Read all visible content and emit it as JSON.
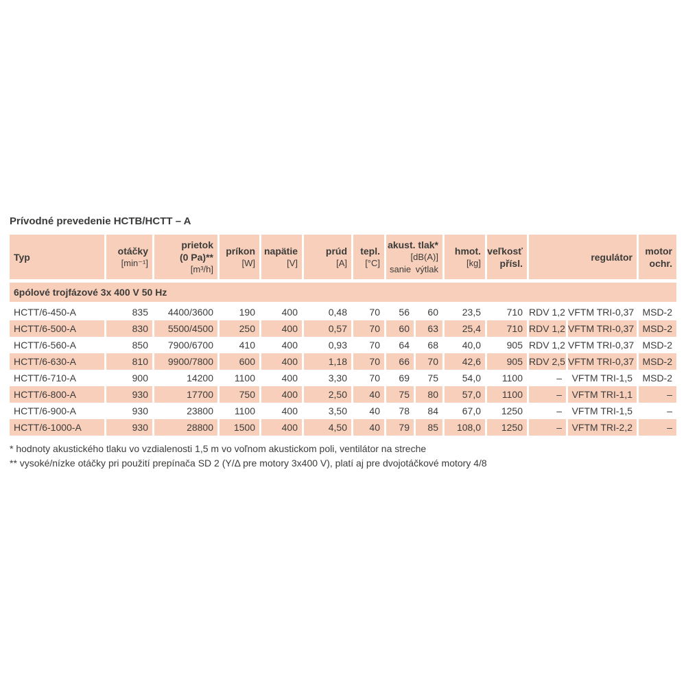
{
  "colors": {
    "cell_bg": "#f8cfba",
    "text": "#3b3b3a",
    "page_bg": "#ffffff"
  },
  "title": "Prívodné prevedenie HCTB/HCTT – A",
  "table": {
    "header": {
      "typ": "Typ",
      "otacky": {
        "label": "otáčky",
        "unit": "[min⁻¹]"
      },
      "prietok": {
        "label": "prietok",
        "unit": "(0 Pa)**",
        "unit2": "[m³/h]"
      },
      "prikon": {
        "label": "príkon",
        "unit": "[W]"
      },
      "napatie": {
        "label": "napätie",
        "unit": "[V]"
      },
      "prud": {
        "label": "prúd",
        "unit": "[A]"
      },
      "tepl": {
        "label": "tepl.",
        "unit": "[°C]"
      },
      "akust": {
        "label": "akust. tlak*",
        "unit": "[dB(A)]",
        "sub_left": "sanie",
        "sub_right": "výtlak"
      },
      "hmot": {
        "label": "hmot.",
        "unit": "[kg]"
      },
      "velkost": {
        "label": "veľkosť",
        "label2": "přísl."
      },
      "regulator": {
        "label": "regulátor"
      },
      "motor": {
        "label": "motor",
        "label2": "ochr."
      }
    },
    "section_label": "6pólové trojfázové 3x 400 V 50 Hz",
    "column_keys": [
      "typ",
      "otacky",
      "prietok",
      "prikon",
      "napatie",
      "prud",
      "tepl",
      "sanie",
      "vytlak",
      "hmot",
      "velkost-prisl",
      "regulator-rdv",
      "regulator-vftm",
      "motor-ochr"
    ],
    "rows": [
      [
        "HCTT/6-450-A",
        "835",
        "4400/3600",
        "190",
        "400",
        "0,48",
        "70",
        "56",
        "60",
        "23,5",
        "710",
        "RDV 1,2",
        "VFTM TRI-0,37",
        "MSD-2"
      ],
      [
        "HCTT/6-500-A",
        "830",
        "5500/4500",
        "250",
        "400",
        "0,57",
        "70",
        "60",
        "63",
        "25,4",
        "710",
        "RDV 1,2",
        "VFTM TRI-0,37",
        "MSD-2"
      ],
      [
        "HCTT/6-560-A",
        "850",
        "7900/6700",
        "410",
        "400",
        "0,93",
        "70",
        "64",
        "68",
        "40,0",
        "905",
        "RDV 1,2",
        "VFTM TRI-0,37",
        "MSD-2"
      ],
      [
        "HCTT/6-630-A",
        "810",
        "9900/7800",
        "600",
        "400",
        "1,18",
        "70",
        "66",
        "70",
        "42,6",
        "905",
        "RDV 2,5",
        "VFTM TRI-0,37",
        "MSD-2"
      ],
      [
        "HCTT/6-710-A",
        "900",
        "14200",
        "1100",
        "400",
        "3,30",
        "70",
        "69",
        "75",
        "54,0",
        "1100",
        "–",
        "VFTM TRI-1,5",
        "MSD-2"
      ],
      [
        "HCTT/6-800-A",
        "930",
        "17700",
        "750",
        "400",
        "2,50",
        "40",
        "75",
        "80",
        "57,0",
        "1100",
        "–",
        "VFTM TRI-1,1",
        "–"
      ],
      [
        "HCTT/6-900-A",
        "930",
        "23800",
        "1100",
        "400",
        "3,50",
        "40",
        "78",
        "84",
        "67,0",
        "1250",
        "–",
        "VFTM TRI-1,5",
        "–"
      ],
      [
        "HCTT/6-1000-A",
        "930",
        "28800",
        "1500",
        "400",
        "4,50",
        "40",
        "79",
        "85",
        "108,0",
        "1250",
        "–",
        "VFTM TRI-2,2",
        "–"
      ]
    ]
  },
  "footnotes": [
    "* hodnoty akustického tlaku vo vzdialenosti 1,5 m vo voľnom akustickom poli, ventilátor na streche",
    "** vysoké/nízke otáčky pri použití prepínača SD 2 (Y/Δ pre motory 3x400 V), platí aj pre dvojotáčkové motory 4/8"
  ]
}
